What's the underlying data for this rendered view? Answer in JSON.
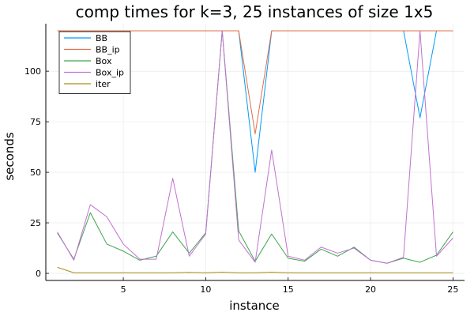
{
  "chart_data": {
    "type": "line",
    "title": "comp times for k=3, 25 instances of size 1x5",
    "xlabel": "instance",
    "ylabel": "seconds",
    "x": [
      1,
      2,
      3,
      4,
      5,
      6,
      7,
      8,
      9,
      10,
      11,
      12,
      13,
      14,
      15,
      16,
      17,
      18,
      19,
      20,
      21,
      22,
      23,
      24,
      25
    ],
    "xlim": [
      0.3,
      25.7
    ],
    "ylim": [
      -3.5,
      123.5
    ],
    "xticks": [
      5,
      10,
      15,
      20,
      25
    ],
    "yticks": [
      0,
      25,
      50,
      75,
      100
    ],
    "grid": true,
    "legend_position": "top-left",
    "series": [
      {
        "name": "BB",
        "color": "#009AFA",
        "values": [
          120,
          120,
          120,
          120,
          120,
          120,
          120,
          120,
          120,
          120,
          120,
          120,
          50,
          120,
          120,
          120,
          120,
          120,
          120,
          120,
          120,
          120,
          77,
          120,
          120
        ]
      },
      {
        "name": "BB_ip",
        "color": "#E26F46",
        "values": [
          120,
          120,
          120,
          120,
          120,
          120,
          120,
          120,
          120,
          120,
          120,
          120,
          69,
          120,
          120,
          120,
          120,
          120,
          120,
          120,
          120,
          120,
          120,
          120,
          120
        ]
      },
      {
        "name": "Box",
        "color": "#3DA44D",
        "values": [
          20,
          7,
          30,
          14.5,
          11,
          6.5,
          8.5,
          20.5,
          10,
          20,
          120,
          21,
          6,
          19.5,
          7.5,
          6,
          12,
          8.5,
          13,
          6.5,
          5,
          7.5,
          5.5,
          9,
          20.5
        ]
      },
      {
        "name": "Box_ip",
        "color": "#C271D2",
        "values": [
          20.5,
          6.5,
          34,
          28,
          14.5,
          7,
          7,
          47,
          8.5,
          19.5,
          120,
          16.5,
          5.5,
          61,
          8.5,
          6.5,
          13,
          10,
          12.5,
          6.5,
          5,
          8,
          120,
          8.5,
          17.5
        ]
      },
      {
        "name": "iter",
        "color": "#AC8D18",
        "values": [
          3,
          0.3,
          0.3,
          0.3,
          0.3,
          0.3,
          0.3,
          0.3,
          0.5,
          0.3,
          0.6,
          0.3,
          0.3,
          0.6,
          0.3,
          0.3,
          0.3,
          0.3,
          0.3,
          0.3,
          0.3,
          0.3,
          0.3,
          0.3,
          0.3
        ]
      }
    ]
  }
}
